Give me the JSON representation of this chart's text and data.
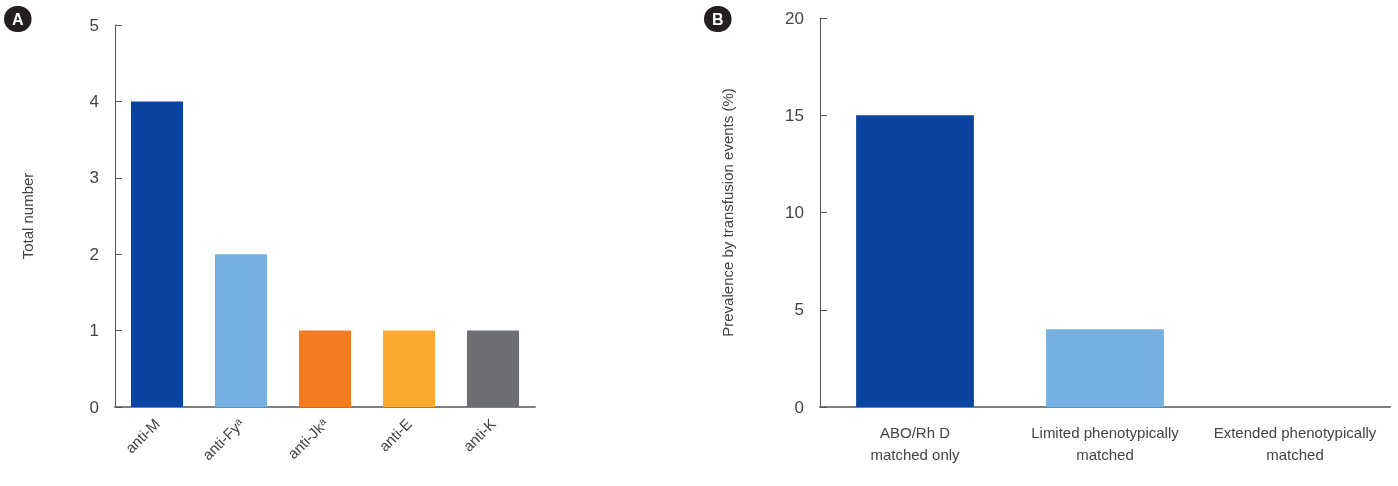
{
  "chart_data": [
    {
      "type": "bar",
      "title": "A",
      "ylabel": "Total number",
      "categories": [
        "anti-M",
        "anti-Fyᵃ",
        "anti-Jkᵃ",
        "anti-E",
        "anti-K"
      ],
      "values": [
        4,
        2,
        1,
        1,
        1
      ],
      "colors": [
        "#0a44a0",
        "#75b0e0",
        "#f47b20",
        "#fba930",
        "#6d6e71"
      ],
      "ylim": [
        0,
        5
      ],
      "yticks": [
        0,
        1,
        2,
        3,
        4,
        5
      ],
      "grid": false
    },
    {
      "type": "bar",
      "title": "B",
      "ylabel": "Prevalence by transfusion events (%)",
      "categories": [
        "ABO/Rh D\nmatched only",
        "Limited phenotypically\nmatched",
        "Extended phenotypically\nmatched"
      ],
      "values": [
        15,
        4,
        0
      ],
      "colors": [
        "#0a44a0",
        "#75b0e0",
        "#75b0e0"
      ],
      "ylim": [
        0,
        20
      ],
      "yticks": [
        0,
        5,
        10,
        15,
        20
      ],
      "grid": false
    }
  ]
}
